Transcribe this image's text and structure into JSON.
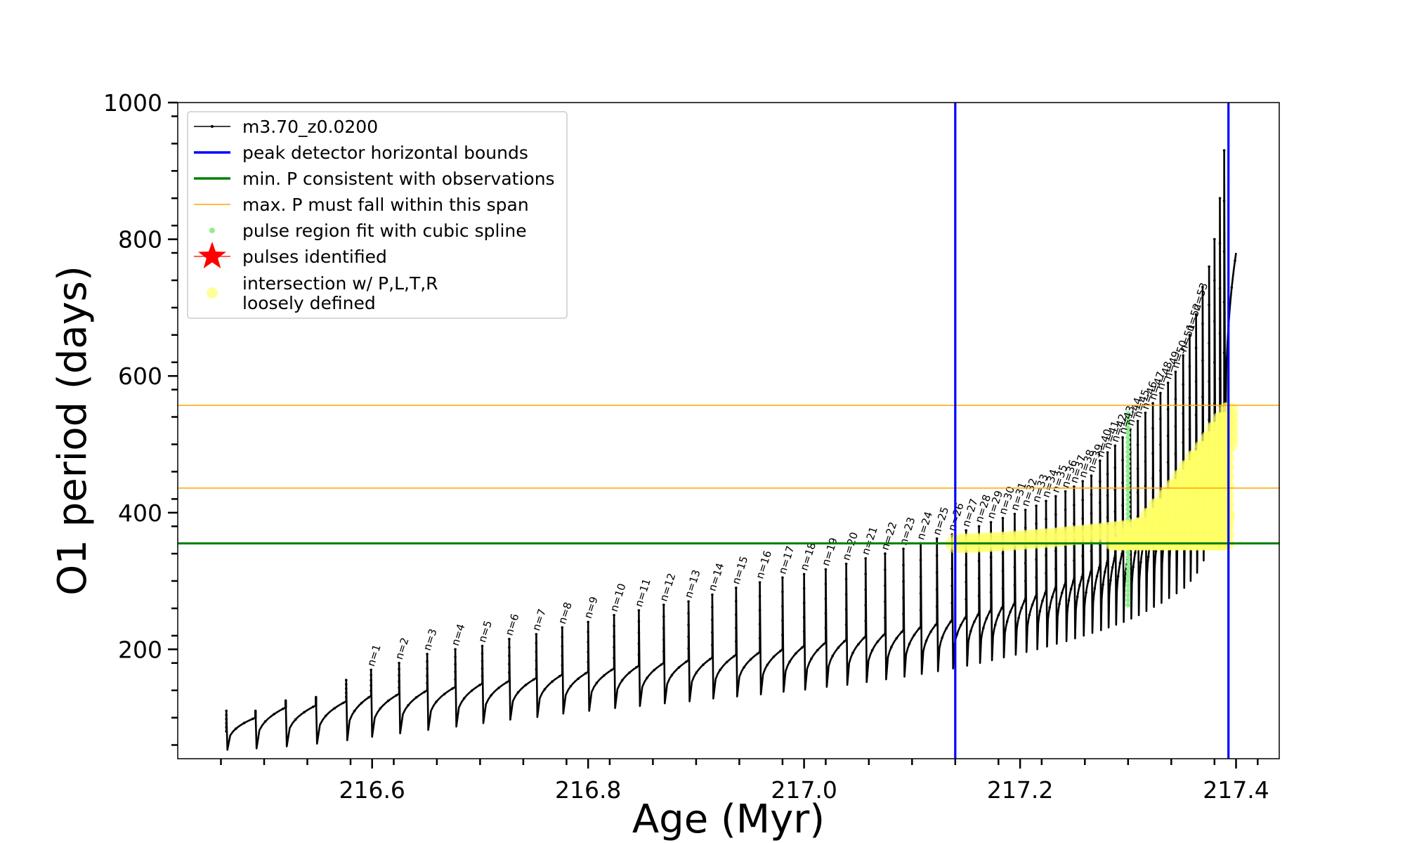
{
  "chart_data": {
    "type": "line",
    "title": "",
    "xlabel": "Age (Myr)",
    "ylabel": "O1 period (days)",
    "xlim": [
      216.42,
      217.44
    ],
    "ylim": [
      40,
      1000
    ],
    "xticks": [
      216.6,
      216.8,
      217.0,
      217.2,
      217.4
    ],
    "xtick_labels": [
      "216.6",
      "216.8",
      "217.0",
      "217.2",
      "217.4"
    ],
    "yticks": [
      200,
      400,
      600,
      800,
      1000
    ],
    "ytick_labels": [
      "200",
      "400",
      "600",
      "800",
      "1000"
    ],
    "grid": false,
    "legend_position": "top-left",
    "legend": [
      {
        "label": "m3.70_z0.0200",
        "kind": "line-dot",
        "color": "#000000"
      },
      {
        "label": "peak detector horizontal bounds",
        "kind": "line",
        "color": "#0000ff"
      },
      {
        "label": "min. P consistent with observations",
        "kind": "line",
        "color": "#008000"
      },
      {
        "label": "max. P must fall within this span",
        "kind": "thin-line",
        "color": "#ffa500"
      },
      {
        "label": "pulse region fit with cubic spline",
        "kind": "dot",
        "color": "#90ee90"
      },
      {
        "label": "pulses identified",
        "kind": "star",
        "color": "#ff0000"
      },
      {
        "label": "intersection w/ P,L,T,R",
        "label2": "loosely defined",
        "kind": "blob",
        "color": "#ffff99"
      }
    ],
    "vertical_lines": [
      {
        "x": 217.14,
        "color": "#0000ff"
      },
      {
        "x": 217.393,
        "color": "#0000ff"
      }
    ],
    "horizontal_lines": [
      {
        "y": 355,
        "color": "#008000",
        "width": 3
      },
      {
        "y": 436,
        "color": "#ffa500",
        "width": 1.5
      },
      {
        "y": 557,
        "color": "#ffa500",
        "width": 1.5
      }
    ],
    "series": [
      {
        "name": "m3.70_z0.0200",
        "color": "#000000",
        "pulses": [
          {
            "x": 216.465,
            "peak": 80,
            "min": 53,
            "top": 110
          },
          {
            "x": 216.492,
            "peak": 100,
            "min": 55,
            "top": 110
          },
          {
            "x": 216.52,
            "peak": 115,
            "min": 58,
            "top": 125
          },
          {
            "x": 216.548,
            "peak": 118,
            "min": 62,
            "top": 130
          },
          {
            "x": 216.576,
            "peak": 124,
            "min": 67,
            "top": 155
          },
          {
            "x": 216.599,
            "peak": 132,
            "min": 72,
            "top": 170,
            "label": "n=1"
          },
          {
            "x": 216.625,
            "peak": 135,
            "min": 77,
            "top": 180,
            "label": "n=2"
          },
          {
            "x": 216.651,
            "peak": 140,
            "min": 82,
            "top": 193,
            "label": "n=3"
          },
          {
            "x": 216.677,
            "peak": 145,
            "min": 87,
            "top": 200,
            "label": "n=4"
          },
          {
            "x": 216.702,
            "peak": 150,
            "min": 92,
            "top": 205,
            "label": "n=5"
          },
          {
            "x": 216.727,
            "peak": 154,
            "min": 97,
            "top": 215,
            "label": "n=6"
          },
          {
            "x": 216.752,
            "peak": 158,
            "min": 101,
            "top": 222,
            "label": "n=7"
          },
          {
            "x": 216.776,
            "peak": 163,
            "min": 106,
            "top": 232,
            "label": "n=8"
          },
          {
            "x": 216.8,
            "peak": 167,
            "min": 110,
            "top": 240,
            "label": "n=9"
          },
          {
            "x": 216.824,
            "peak": 172,
            "min": 114,
            "top": 250,
            "label": "n=10"
          },
          {
            "x": 216.847,
            "peak": 176,
            "min": 117,
            "top": 257,
            "label": "n=11"
          },
          {
            "x": 216.87,
            "peak": 180,
            "min": 121,
            "top": 265,
            "label": "n=12"
          },
          {
            "x": 216.893,
            "peak": 184,
            "min": 124,
            "top": 270,
            "label": "n=13"
          },
          {
            "x": 216.915,
            "peak": 188,
            "min": 128,
            "top": 280,
            "label": "n=14"
          },
          {
            "x": 216.937,
            "peak": 192,
            "min": 131,
            "top": 290,
            "label": "n=15"
          },
          {
            "x": 216.959,
            "peak": 196,
            "min": 134,
            "top": 298,
            "label": "n=16"
          },
          {
            "x": 216.98,
            "peak": 200,
            "min": 138,
            "top": 305,
            "label": "n=17"
          },
          {
            "x": 217.0,
            "peak": 205,
            "min": 141,
            "top": 310,
            "label": "n=18"
          },
          {
            "x": 217.02,
            "peak": 210,
            "min": 145,
            "top": 317,
            "label": "n=19"
          },
          {
            "x": 217.039,
            "peak": 214,
            "min": 148,
            "top": 325,
            "label": "n=20"
          },
          {
            "x": 217.057,
            "peak": 219,
            "min": 152,
            "top": 333,
            "label": "n=21"
          },
          {
            "x": 217.075,
            "peak": 223,
            "min": 156,
            "top": 340,
            "label": "n=22"
          },
          {
            "x": 217.092,
            "peak": 228,
            "min": 160,
            "top": 347,
            "label": "n=23"
          },
          {
            "x": 217.108,
            "peak": 233,
            "min": 164,
            "top": 355,
            "label": "n=24"
          },
          {
            "x": 217.123,
            "peak": 238,
            "min": 168,
            "top": 362,
            "label": "n=25"
          },
          {
            "x": 217.137,
            "peak": 243,
            "min": 172,
            "top": 368,
            "label": "n=26"
          },
          {
            "x": 217.15,
            "peak": 248,
            "min": 176,
            "top": 374,
            "label": "n=27"
          },
          {
            "x": 217.162,
            "peak": 253,
            "min": 180,
            "top": 380,
            "label": "n=28"
          },
          {
            "x": 217.173,
            "peak": 258,
            "min": 184,
            "top": 386,
            "label": "n=29"
          },
          {
            "x": 217.184,
            "peak": 263,
            "min": 188,
            "top": 392,
            "label": "n=30"
          },
          {
            "x": 217.195,
            "peak": 268,
            "min": 192,
            "top": 398,
            "label": "n=31"
          },
          {
            "x": 217.205,
            "peak": 274,
            "min": 196,
            "top": 404,
            "label": "n=32"
          },
          {
            "x": 217.215,
            "peak": 279,
            "min": 200,
            "top": 410,
            "label": "n=33"
          },
          {
            "x": 217.224,
            "peak": 285,
            "min": 204,
            "top": 417,
            "label": "n=34"
          },
          {
            "x": 217.233,
            "peak": 291,
            "min": 208,
            "top": 424,
            "label": "n=35"
          },
          {
            "x": 217.242,
            "peak": 297,
            "min": 212,
            "top": 431,
            "label": "n=36"
          },
          {
            "x": 217.25,
            "peak": 303,
            "min": 216,
            "top": 438,
            "label": "n=37"
          },
          {
            "x": 217.258,
            "peak": 309,
            "min": 220,
            "top": 446,
            "label": "n=38"
          },
          {
            "x": 217.266,
            "peak": 316,
            "min": 224,
            "top": 454,
            "label": "n=39"
          },
          {
            "x": 217.274,
            "peak": 323,
            "min": 228,
            "top": 476,
            "label": "n=40"
          },
          {
            "x": 217.281,
            "peak": 330,
            "min": 232,
            "top": 488,
            "label": "n=41"
          },
          {
            "x": 217.288,
            "peak": 337,
            "min": 236,
            "top": 498,
            "label": "n=42"
          },
          {
            "x": 217.295,
            "peak": 344,
            "min": 240,
            "top": 510,
            "label": "n=43"
          },
          {
            "x": 217.302,
            "peak": 352,
            "min": 245,
            "top": 522,
            "label": "n=44"
          },
          {
            "x": 217.309,
            "peak": 360,
            "min": 250,
            "top": 534,
            "label": "n=45"
          },
          {
            "x": 217.316,
            "peak": 368,
            "min": 256,
            "top": 546,
            "label": "n=46"
          },
          {
            "x": 217.323,
            "peak": 377,
            "min": 262,
            "top": 560,
            "label": "n=47"
          },
          {
            "x": 217.33,
            "peak": 386,
            "min": 268,
            "top": 575,
            "label": "n=48"
          },
          {
            "x": 217.337,
            "peak": 396,
            "min": 275,
            "top": 590,
            "label": "n=49"
          },
          {
            "x": 217.344,
            "peak": 406,
            "min": 282,
            "top": 606,
            "label": "n=50"
          },
          {
            "x": 217.351,
            "peak": 418,
            "min": 290,
            "top": 630,
            "label": "n=51"
          },
          {
            "x": 217.357,
            "peak": 430,
            "min": 300,
            "top": 660,
            "label": "n=52"
          },
          {
            "x": 217.363,
            "peak": 445,
            "min": 312,
            "top": 690,
            "label": "n=53"
          },
          {
            "x": 217.369,
            "peak": 462,
            "min": 330,
            "top": 730
          },
          {
            "x": 217.375,
            "peak": 480,
            "min": 350,
            "top": 760
          },
          {
            "x": 217.38,
            "peak": 500,
            "min": 380,
            "top": 800
          },
          {
            "x": 217.385,
            "peak": 530,
            "min": 420,
            "top": 860
          },
          {
            "x": 217.389,
            "peak": 560,
            "min": 470,
            "top": 930
          }
        ],
        "tail_end": {
          "x": 217.4,
          "y": 780
        }
      }
    ],
    "spline_fit": {
      "x": 217.3,
      "y_range": [
        265,
        545
      ],
      "color": "#90ee90"
    },
    "intersection_region": {
      "color": "#ffff66",
      "x_range": [
        217.14,
        217.393
      ],
      "y_range": [
        355,
        557
      ]
    }
  }
}
